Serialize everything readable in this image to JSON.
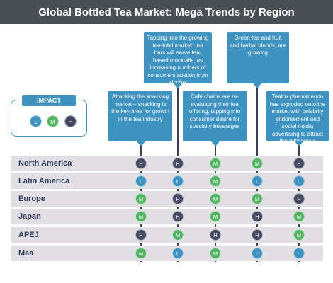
{
  "title": "Global Bottled Tea Market: Mega Trends by Region",
  "colors": {
    "L": "#3f93c0",
    "M": "#55b464",
    "H": "#454a63",
    "callout": "#3f93c0",
    "band": "#e2dfe4"
  },
  "legend": {
    "title": "IMPACT",
    "items": [
      "L",
      "M",
      "H"
    ]
  },
  "trends": [
    {
      "text": "Attacking the snacking market – snacking is the key area for growth in the tea industry"
    },
    {
      "text": "Tapping into the growing tee-total market, tea bars will serve tea-based mocktails, as increasing numbers of consumers abstain from alcohol"
    },
    {
      "text": "Café chains are re-evaluating their tea offering, tapping into consumer desire for specialty beverages"
    },
    {
      "text": "Green tea and fruit and herbal blends, are growing"
    },
    {
      "text": "Teatox phenomenon has exploded onto the market with celebrity endorsement and social media advertising to attract the millennials"
    }
  ],
  "regions": [
    {
      "name": "North America",
      "impacts": [
        "H",
        "H",
        "M",
        "M",
        "H"
      ]
    },
    {
      "name": "Latin America",
      "impacts": [
        "L",
        "L",
        "M",
        "L",
        "L"
      ]
    },
    {
      "name": "Europe",
      "impacts": [
        "M",
        "H",
        "M",
        "M",
        "H"
      ]
    },
    {
      "name": "Japan",
      "impacts": [
        "M",
        "H",
        "M",
        "H",
        "M"
      ]
    },
    {
      "name": "APEJ",
      "impacts": [
        "H",
        "M",
        "H",
        "H",
        "M"
      ]
    },
    {
      "name": "Mea",
      "impacts": [
        "M",
        "L",
        "M",
        "L",
        "L"
      ]
    }
  ]
}
